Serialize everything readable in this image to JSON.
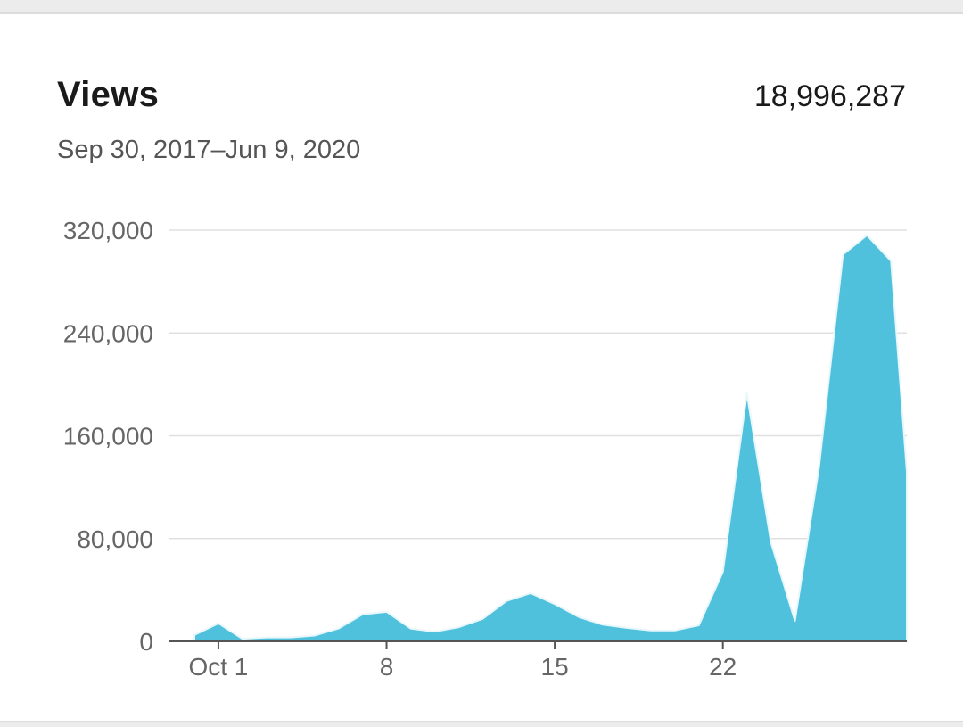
{
  "header": {
    "title": "Views",
    "total": "18,996,287",
    "date_range": "Sep 30, 2017–Jun 9, 2020"
  },
  "colors": {
    "area_fill": "#4fc1dc",
    "area_stroke": "#e9f7fb",
    "gridline": "#e0e0e0",
    "axis": "#555555"
  },
  "chart_data": {
    "type": "area",
    "title": "Views",
    "xlabel": "",
    "ylabel": "",
    "grid": true,
    "ylim": [
      0,
      320000
    ],
    "yticks": [
      0,
      80000,
      160000,
      240000,
      320000
    ],
    "ytick_labels": [
      "0",
      "80,000",
      "160,000",
      "240,000",
      "320,000"
    ],
    "xticks": [
      1,
      8,
      15,
      22
    ],
    "xtick_labels": [
      "Oct 1",
      "8",
      "15",
      "22"
    ],
    "x": [
      0,
      1,
      2,
      3,
      4,
      5,
      6,
      7,
      8,
      9,
      10,
      11,
      12,
      13,
      14,
      15,
      16,
      17,
      18,
      19,
      20,
      21,
      22,
      23,
      24,
      25,
      26,
      27,
      28,
      29,
      30,
      31
    ],
    "values": [
      5000,
      14000,
      2000,
      3000,
      3000,
      4500,
      10000,
      21000,
      23000,
      10000,
      7500,
      11000,
      17500,
      31500,
      37500,
      29000,
      19000,
      13000,
      10500,
      8500,
      8500,
      12500,
      54000,
      193000,
      77000,
      16000,
      135000,
      301000,
      316000,
      296000,
      132000,
      132000
    ]
  }
}
